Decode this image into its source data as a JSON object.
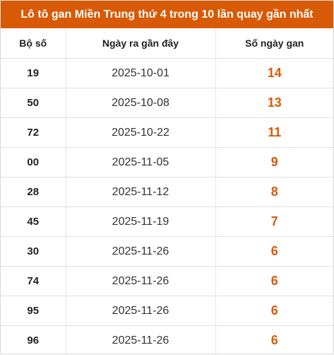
{
  "title": "Lô tô gan Miền Trung thứ 4 trong 10 lần quay gần nhất",
  "columns": {
    "number": "Bộ số",
    "last_date": "Ngày ra gần đây",
    "days_gan": "Số ngày gan"
  },
  "rows": [
    {
      "number": "19",
      "last_date": "2025-10-01",
      "days_gan": "14"
    },
    {
      "number": "50",
      "last_date": "2025-10-08",
      "days_gan": "13"
    },
    {
      "number": "72",
      "last_date": "2025-10-22",
      "days_gan": "11"
    },
    {
      "number": "00",
      "last_date": "2025-11-05",
      "days_gan": "9"
    },
    {
      "number": "28",
      "last_date": "2025-11-12",
      "days_gan": "8"
    },
    {
      "number": "45",
      "last_date": "2025-11-19",
      "days_gan": "7"
    },
    {
      "number": "30",
      "last_date": "2025-11-26",
      "days_gan": "6"
    },
    {
      "number": "74",
      "last_date": "2025-11-26",
      "days_gan": "6"
    },
    {
      "number": "95",
      "last_date": "2025-11-26",
      "days_gan": "6"
    },
    {
      "number": "96",
      "last_date": "2025-11-26",
      "days_gan": "6"
    }
  ],
  "colors": {
    "accent": "#d85a06",
    "header_text": "#ffffff"
  }
}
